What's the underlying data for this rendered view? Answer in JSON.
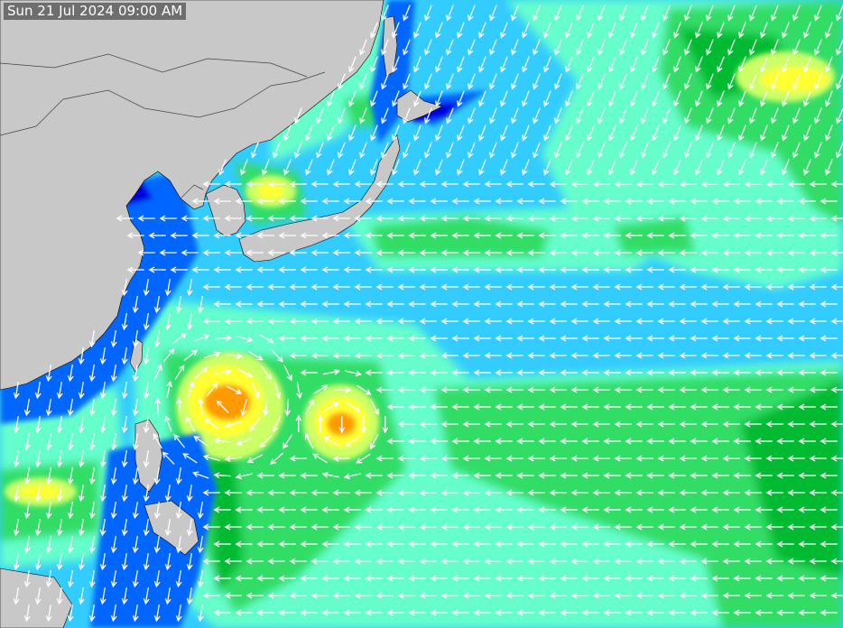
{
  "map": {
    "timestamp": "Sun 21 Jul 2024 09:00 AM",
    "colors": {
      "land": "#c8c8c8",
      "border": "#444444",
      "calm": "#0000dd",
      "very_low": "#0066ff",
      "low": "#33ccff",
      "moderate": "#66ffcc",
      "fresh": "#33dd66",
      "strong": "#00bb33",
      "high": "#ccff66",
      "very_high": "#ffff33",
      "severe": "#ff9900",
      "extreme": "#ff3300",
      "arrow": "#ffffff"
    }
  }
}
